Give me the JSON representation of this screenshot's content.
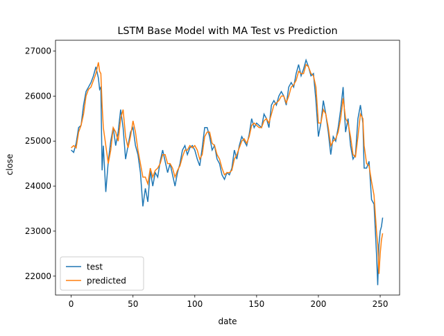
{
  "chart_data": {
    "type": "line",
    "title": "LSTM Base Model with MA Test vs Prediction",
    "x_label": "date",
    "y_label": "close",
    "x": [
      0,
      2,
      4,
      6,
      8,
      10,
      12,
      14,
      16,
      18,
      20,
      22,
      23,
      24,
      25,
      26,
      28,
      30,
      32,
      34,
      36,
      38,
      40,
      42,
      44,
      46,
      48,
      50,
      52,
      54,
      56,
      58,
      60,
      62,
      64,
      66,
      68,
      70,
      72,
      74,
      76,
      78,
      80,
      82,
      84,
      86,
      88,
      90,
      92,
      94,
      96,
      98,
      100,
      102,
      104,
      106,
      108,
      110,
      112,
      114,
      116,
      118,
      120,
      122,
      124,
      126,
      128,
      130,
      132,
      134,
      136,
      138,
      140,
      142,
      144,
      146,
      148,
      150,
      152,
      154,
      156,
      158,
      160,
      162,
      164,
      166,
      168,
      170,
      172,
      174,
      176,
      178,
      180,
      182,
      184,
      186,
      188,
      190,
      192,
      194,
      196,
      198,
      200,
      202,
      204,
      206,
      208,
      210,
      212,
      214,
      216,
      218,
      220,
      222,
      224,
      226,
      228,
      230,
      232,
      234,
      236,
      237,
      239,
      241,
      243,
      245,
      247,
      248,
      249,
      250,
      251,
      252
    ],
    "series": [
      {
        "name": "test",
        "color": "#1f77b4",
        "values": [
          24800,
          24750,
          24950,
          25300,
          25350,
          25800,
          26100,
          26200,
          26300,
          26450,
          26650,
          26400,
          26150,
          26200,
          24350,
          24900,
          23870,
          24550,
          25000,
          25300,
          24900,
          25200,
          25700,
          25300,
          24600,
          24900,
          25200,
          25300,
          24900,
          24700,
          24300,
          23550,
          23950,
          23650,
          24350,
          24000,
          24300,
          24200,
          24550,
          24800,
          24550,
          24300,
          24500,
          24250,
          24000,
          24300,
          24500,
          24800,
          24900,
          24700,
          24850,
          24900,
          24800,
          24600,
          24450,
          24850,
          25300,
          25300,
          25100,
          24800,
          24900,
          24600,
          24500,
          24250,
          24150,
          24300,
          24250,
          24400,
          24800,
          24600,
          24900,
          25100,
          25000,
          24900,
          25150,
          25500,
          25300,
          25400,
          25350,
          25300,
          25600,
          25500,
          25300,
          25800,
          25900,
          25800,
          26000,
          26100,
          26000,
          25800,
          26200,
          26300,
          26200,
          26500,
          26700,
          26450,
          26600,
          26800,
          26650,
          26450,
          26500,
          25900,
          25100,
          25400,
          25900,
          25600,
          25200,
          24700,
          25100,
          25000,
          25300,
          25700,
          26200,
          25200,
          25500,
          24900,
          24600,
          24700,
          25500,
          25800,
          25400,
          24400,
          24400,
          24550,
          23700,
          23600,
          22500,
          21800,
          22700,
          23000,
          23100,
          23300
        ]
      },
      {
        "name": "predicted",
        "color": "#ff7f0e",
        "values": [
          24850,
          24900,
          24850,
          25200,
          25350,
          25600,
          26000,
          26150,
          26200,
          26350,
          26500,
          26750,
          26550,
          26500,
          25800,
          25300,
          24900,
          24500,
          24800,
          25300,
          25200,
          25000,
          25500,
          25700,
          25100,
          24850,
          25100,
          25450,
          25200,
          24800,
          24500,
          24200,
          24200,
          24050,
          24400,
          24200,
          24350,
          24400,
          24500,
          24700,
          24700,
          24500,
          24500,
          24400,
          24200,
          24350,
          24450,
          24650,
          24800,
          24800,
          24900,
          24850,
          24900,
          24800,
          24600,
          24700,
          25100,
          25200,
          25200,
          24950,
          24900,
          24700,
          24600,
          24400,
          24250,
          24300,
          24300,
          24350,
          24600,
          24700,
          24850,
          25000,
          25050,
          24950,
          25100,
          25350,
          25400,
          25350,
          25300,
          25300,
          25450,
          25500,
          25400,
          25600,
          25800,
          25850,
          25900,
          26000,
          26000,
          25850,
          26000,
          26200,
          26250,
          26350,
          26550,
          26500,
          26500,
          26700,
          26650,
          26500,
          26450,
          26200,
          25400,
          25400,
          25700,
          25600,
          25300,
          24900,
          25000,
          25050,
          25200,
          25500,
          25950,
          25500,
          25400,
          25100,
          24700,
          24650,
          25100,
          25600,
          25500,
          24900,
          24500,
          24450,
          24100,
          23800,
          23000,
          22700,
          22050,
          22500,
          22800,
          22950
        ]
      }
    ],
    "xlim": [
      -12.7,
      265.7
    ],
    "ylim": [
      21580,
      27240
    ],
    "xticks": [
      0,
      50,
      100,
      150,
      200,
      250
    ],
    "yticks": [
      22000,
      23000,
      24000,
      25000,
      26000,
      27000
    ],
    "legend": "lower left"
  }
}
